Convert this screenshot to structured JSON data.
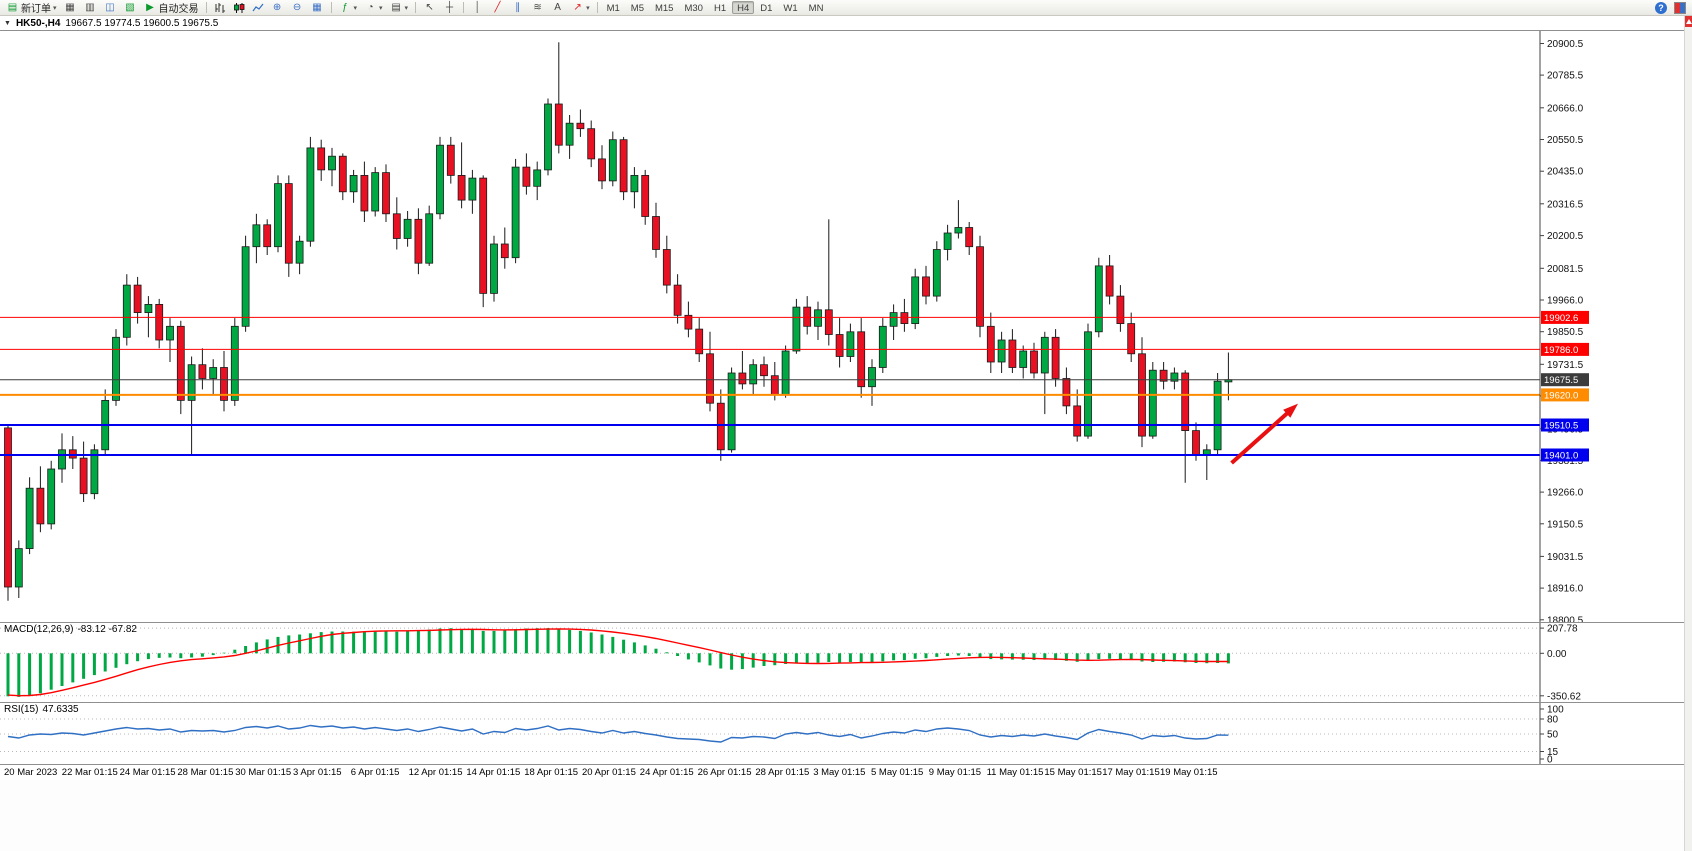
{
  "toolbar": {
    "new_order": "新订单",
    "auto_trading": "自动交易",
    "timeframes": [
      "M1",
      "M5",
      "M15",
      "M30",
      "H1",
      "H4",
      "D1",
      "W1",
      "MN"
    ],
    "active_timeframe": "H4",
    "help_icon": "?"
  },
  "title": {
    "symbol_period": "HK50-,H4",
    "ohlc": "19667.5 19774.5 19600.5 19675.5"
  },
  "chart_data": {
    "type": "candlestick",
    "symbol": "HK50-",
    "period": "H4",
    "colors": {
      "bull": "#00A843",
      "bear": "#E81123",
      "wick": "#1a1a1a",
      "signal": "#ff0000",
      "rsi_line": "#2f6fc4",
      "grid": "#b8b8b8",
      "arrow": "#e81010"
    },
    "price_axis": {
      "min": 18789,
      "max": 20946,
      "ticks": [
        20900.5,
        20785.5,
        20666.0,
        20550.5,
        20435.0,
        20316.5,
        20200.5,
        20081.5,
        19966.0,
        19850.5,
        19731.5,
        19616.5,
        19496.5,
        19381.5,
        19266.0,
        19150.5,
        19031.5,
        18916.0,
        18800.5
      ]
    },
    "hlines": [
      {
        "value": 19902.6,
        "label": "19902.6",
        "color": "#FF0000",
        "width": 1
      },
      {
        "value": 19786.0,
        "label": "19786.0",
        "color": "#FF0000",
        "width": 1
      },
      {
        "value": 19675.5,
        "label": "19675.5",
        "color": "#3c3c3c",
        "width": 1,
        "current": true
      },
      {
        "value": 19620.0,
        "label": "19620.0",
        "color": "#FF8C00",
        "width": 2
      },
      {
        "value": 19510.5,
        "label": "19510.5",
        "color": "#0000EE",
        "width": 2
      },
      {
        "value": 19401.0,
        "label": "19401.0",
        "color": "#0000EE",
        "width": 2
      }
    ],
    "arrow": {
      "i1": 113.3,
      "p1": 19372,
      "i2": 118.9,
      "p2": 19569
    },
    "candles": [
      [
        19500,
        19510,
        18870,
        18920
      ],
      [
        18920,
        19090,
        18880,
        19060
      ],
      [
        19060,
        19320,
        19040,
        19280
      ],
      [
        19280,
        19360,
        19120,
        19150
      ],
      [
        19150,
        19380,
        19130,
        19350
      ],
      [
        19350,
        19480,
        19300,
        19420
      ],
      [
        19420,
        19470,
        19350,
        19390
      ],
      [
        19390,
        19450,
        19230,
        19260
      ],
      [
        19260,
        19440,
        19240,
        19420
      ],
      [
        19420,
        19640,
        19400,
        19600
      ],
      [
        19600,
        19860,
        19580,
        19830
      ],
      [
        19830,
        20060,
        19800,
        20020
      ],
      [
        20020,
        20050,
        19880,
        19920
      ],
      [
        19920,
        19980,
        19830,
        19950
      ],
      [
        19950,
        19970,
        19790,
        19820
      ],
      [
        19820,
        19900,
        19740,
        19870
      ],
      [
        19870,
        19890,
        19550,
        19600
      ],
      [
        19600,
        19760,
        19400,
        19730
      ],
      [
        19730,
        19790,
        19640,
        19680
      ],
      [
        19680,
        19750,
        19620,
        19720
      ],
      [
        19720,
        19780,
        19560,
        19600
      ],
      [
        19600,
        19900,
        19580,
        19870
      ],
      [
        19870,
        20200,
        19850,
        20160
      ],
      [
        20160,
        20280,
        20100,
        20240
      ],
      [
        20240,
        20260,
        20130,
        20160
      ],
      [
        20160,
        20420,
        20140,
        20390
      ],
      [
        20390,
        20420,
        20050,
        20100
      ],
      [
        20100,
        20200,
        20060,
        20180
      ],
      [
        20180,
        20560,
        20160,
        20520
      ],
      [
        20520,
        20550,
        20400,
        20440
      ],
      [
        20440,
        20520,
        20380,
        20490
      ],
      [
        20490,
        20500,
        20330,
        20360
      ],
      [
        20360,
        20440,
        20320,
        20420
      ],
      [
        20420,
        20470,
        20250,
        20290
      ],
      [
        20290,
        20450,
        20270,
        20430
      ],
      [
        20430,
        20460,
        20250,
        20280
      ],
      [
        20280,
        20340,
        20150,
        20190
      ],
      [
        20190,
        20290,
        20160,
        20260
      ],
      [
        20260,
        20300,
        20060,
        20100
      ],
      [
        20100,
        20310,
        20090,
        20280
      ],
      [
        20280,
        20560,
        20260,
        20530
      ],
      [
        20530,
        20560,
        20390,
        20420
      ],
      [
        20420,
        20540,
        20300,
        20330
      ],
      [
        20330,
        20440,
        20280,
        20410
      ],
      [
        20410,
        20420,
        19940,
        19990
      ],
      [
        19990,
        20200,
        19960,
        20170
      ],
      [
        20170,
        20230,
        20080,
        20120
      ],
      [
        20120,
        20480,
        20100,
        20450
      ],
      [
        20450,
        20500,
        20350,
        20380
      ],
      [
        20380,
        20470,
        20330,
        20440
      ],
      [
        20440,
        20700,
        20420,
        20680
      ],
      [
        20680,
        20905,
        20500,
        20530
      ],
      [
        20530,
        20640,
        20480,
        20610
      ],
      [
        20610,
        20660,
        20560,
        20590
      ],
      [
        20590,
        20620,
        20450,
        20480
      ],
      [
        20480,
        20530,
        20370,
        20400
      ],
      [
        20400,
        20580,
        20380,
        20550
      ],
      [
        20550,
        20560,
        20330,
        20360
      ],
      [
        20360,
        20450,
        20300,
        20420
      ],
      [
        20420,
        20440,
        20240,
        20270
      ],
      [
        20270,
        20320,
        20120,
        20150
      ],
      [
        20150,
        20200,
        19990,
        20020
      ],
      [
        20020,
        20060,
        19880,
        19910
      ],
      [
        19910,
        19960,
        19830,
        19860
      ],
      [
        19860,
        19900,
        19740,
        19770
      ],
      [
        19770,
        19850,
        19560,
        19590
      ],
      [
        19590,
        19640,
        19380,
        19420
      ],
      [
        19420,
        19720,
        19410,
        19700
      ],
      [
        19700,
        19780,
        19640,
        19660
      ],
      [
        19660,
        19750,
        19620,
        19730
      ],
      [
        19730,
        19760,
        19650,
        19690
      ],
      [
        19690,
        19740,
        19600,
        19620
      ],
      [
        19620,
        19800,
        19610,
        19780
      ],
      [
        19780,
        19970,
        19770,
        19940
      ],
      [
        19940,
        19980,
        19840,
        19870
      ],
      [
        19870,
        19960,
        19820,
        19930
      ],
      [
        19930,
        20260,
        19800,
        19840
      ],
      [
        19840,
        19900,
        19720,
        19760
      ],
      [
        19760,
        19880,
        19740,
        19850
      ],
      [
        19850,
        19900,
        19610,
        19650
      ],
      [
        19650,
        19750,
        19580,
        19720
      ],
      [
        19720,
        19900,
        19700,
        19870
      ],
      [
        19870,
        19950,
        19820,
        19920
      ],
      [
        19920,
        19970,
        19850,
        19880
      ],
      [
        19880,
        20080,
        19860,
        20050
      ],
      [
        20050,
        20090,
        19950,
        19980
      ],
      [
        19980,
        20180,
        19960,
        20150
      ],
      [
        20150,
        20240,
        20110,
        20210
      ],
      [
        20210,
        20330,
        20190,
        20230
      ],
      [
        20230,
        20250,
        20130,
        20160
      ],
      [
        20160,
        20200,
        19830,
        19870
      ],
      [
        19870,
        19920,
        19700,
        19740
      ],
      [
        19740,
        19850,
        19700,
        19820
      ],
      [
        19820,
        19860,
        19700,
        19720
      ],
      [
        19720,
        19800,
        19680,
        19780
      ],
      [
        19780,
        19810,
        19680,
        19700
      ],
      [
        19700,
        19850,
        19550,
        19830
      ],
      [
        19830,
        19860,
        19650,
        19680
      ],
      [
        19680,
        19720,
        19550,
        19580
      ],
      [
        19580,
        19640,
        19450,
        19470
      ],
      [
        19470,
        19880,
        19460,
        19850
      ],
      [
        19850,
        20120,
        19830,
        20090
      ],
      [
        20090,
        20130,
        19950,
        19980
      ],
      [
        19980,
        20020,
        19850,
        19880
      ],
      [
        19880,
        19920,
        19740,
        19770
      ],
      [
        19770,
        19830,
        19430,
        19470
      ],
      [
        19470,
        19740,
        19460,
        19710
      ],
      [
        19710,
        19740,
        19640,
        19670
      ],
      [
        19670,
        19720,
        19640,
        19700
      ],
      [
        19700,
        19710,
        19300,
        19490
      ],
      [
        19490,
        19520,
        19380,
        19400
      ],
      [
        19400,
        19440,
        19310,
        19420
      ],
      [
        19420,
        19700,
        19400,
        19670
      ],
      [
        19667.5,
        19774.5,
        19600.5,
        19675.5
      ]
    ],
    "macd": {
      "label": "MACD(12,26,9)",
      "values_label": "-83.12 -67.82",
      "axis": [
        207.78,
        0,
        -350.62
      ],
      "hist": [
        -355,
        -360,
        -350,
        -330,
        -300,
        -270,
        -240,
        -210,
        -180,
        -150,
        -120,
        -90,
        -65,
        -48,
        -38,
        -35,
        -40,
        -35,
        -28,
        -15,
        5,
        30,
        60,
        90,
        115,
        135,
        148,
        155,
        165,
        175,
        180,
        180,
        178,
        180,
        185,
        183,
        178,
        180,
        188,
        196,
        205,
        207,
        200,
        198,
        185,
        185,
        190,
        200,
        205,
        207,
        208,
        200,
        193,
        185,
        172,
        155,
        135,
        112,
        90,
        65,
        38,
        8,
        -22,
        -50,
        -75,
        -100,
        -125,
        -135,
        -130,
        -118,
        -105,
        -98,
        -88,
        -78,
        -80,
        -78,
        -72,
        -76,
        -72,
        -80,
        -76,
        -66,
        -58,
        -55,
        -45,
        -40,
        -30,
        -22,
        -18,
        -22,
        -35,
        -48,
        -50,
        -52,
        -54,
        -55,
        -52,
        -55,
        -62,
        -70,
        -62,
        -48,
        -45,
        -48,
        -55,
        -68,
        -72,
        -70,
        -68,
        -74,
        -80,
        -82,
        -80,
        -83.12
      ],
      "signal": [
        -345,
        -350,
        -348,
        -340,
        -325,
        -305,
        -285,
        -262,
        -240,
        -215,
        -190,
        -162,
        -135,
        -112,
        -92,
        -75,
        -62,
        -52,
        -45,
        -38,
        -30,
        -18,
        0,
        20,
        42,
        65,
        85,
        103,
        122,
        140,
        155,
        165,
        172,
        178,
        182,
        185,
        186,
        186,
        187,
        189,
        192,
        195,
        197,
        198,
        196,
        194,
        193,
        194,
        196,
        198,
        200,
        201,
        200,
        197,
        192,
        185,
        176,
        165,
        152,
        138,
        122,
        104,
        85,
        66,
        47,
        27,
        6,
        -14,
        -32,
        -48,
        -60,
        -70,
        -77,
        -81,
        -83,
        -84,
        -83,
        -81,
        -79,
        -77,
        -76,
        -74,
        -71,
        -68,
        -64,
        -59,
        -54,
        -48,
        -42,
        -37,
        -34,
        -33,
        -34,
        -36,
        -39,
        -42,
        -45,
        -48,
        -52,
        -56,
        -58,
        -57,
        -54,
        -52,
        -51,
        -52,
        -55,
        -58,
        -60,
        -63,
        -66,
        -68,
        -68,
        -67.82
      ]
    },
    "rsi": {
      "label": "RSI(15)",
      "value_label": "47.6335",
      "axis": [
        100,
        80,
        50,
        15,
        0
      ],
      "levels": [
        80,
        50,
        15
      ],
      "values": [
        45,
        42,
        48,
        50,
        49,
        52,
        51,
        48,
        52,
        56,
        60,
        63,
        60,
        61,
        58,
        60,
        54,
        57,
        56,
        57,
        54,
        57,
        63,
        65,
        62,
        66,
        60,
        62,
        67,
        64,
        66,
        62,
        64,
        60,
        63,
        60,
        57,
        60,
        55,
        59,
        64,
        60,
        56,
        60,
        50,
        55,
        53,
        61,
        58,
        61,
        66,
        58,
        61,
        59,
        55,
        52,
        57,
        52,
        55,
        51,
        48,
        44,
        41,
        40,
        39,
        36,
        34,
        43,
        42,
        45,
        44,
        41,
        50,
        53,
        50,
        53,
        48,
        45,
        49,
        42,
        46,
        51,
        54,
        52,
        58,
        55,
        60,
        62,
        60,
        57,
        48,
        44,
        47,
        45,
        48,
        46,
        50,
        46,
        43,
        39,
        52,
        59,
        55,
        52,
        48,
        40,
        47,
        45,
        47,
        42,
        40,
        41,
        48,
        47.63
      ]
    },
    "time_labels": [
      "20 Mar 2023",
      "22 Mar 01:15",
      "24 Mar 01:15",
      "28 Mar 01:15",
      "30 Mar 01:15",
      "3 Apr 01:15",
      "6 Apr 01:15",
      "12 Apr 01:15",
      "14 Apr 01:15",
      "18 Apr 01:15",
      "20 Apr 01:15",
      "24 Apr 01:15",
      "26 Apr 01:15",
      "28 Apr 01:15",
      "3 May 01:15",
      "5 May 01:15",
      "9 May 01:15",
      "11 May 01:15",
      "15 May 01:15",
      "17 May 01:15",
      "19 May 01:15"
    ]
  }
}
